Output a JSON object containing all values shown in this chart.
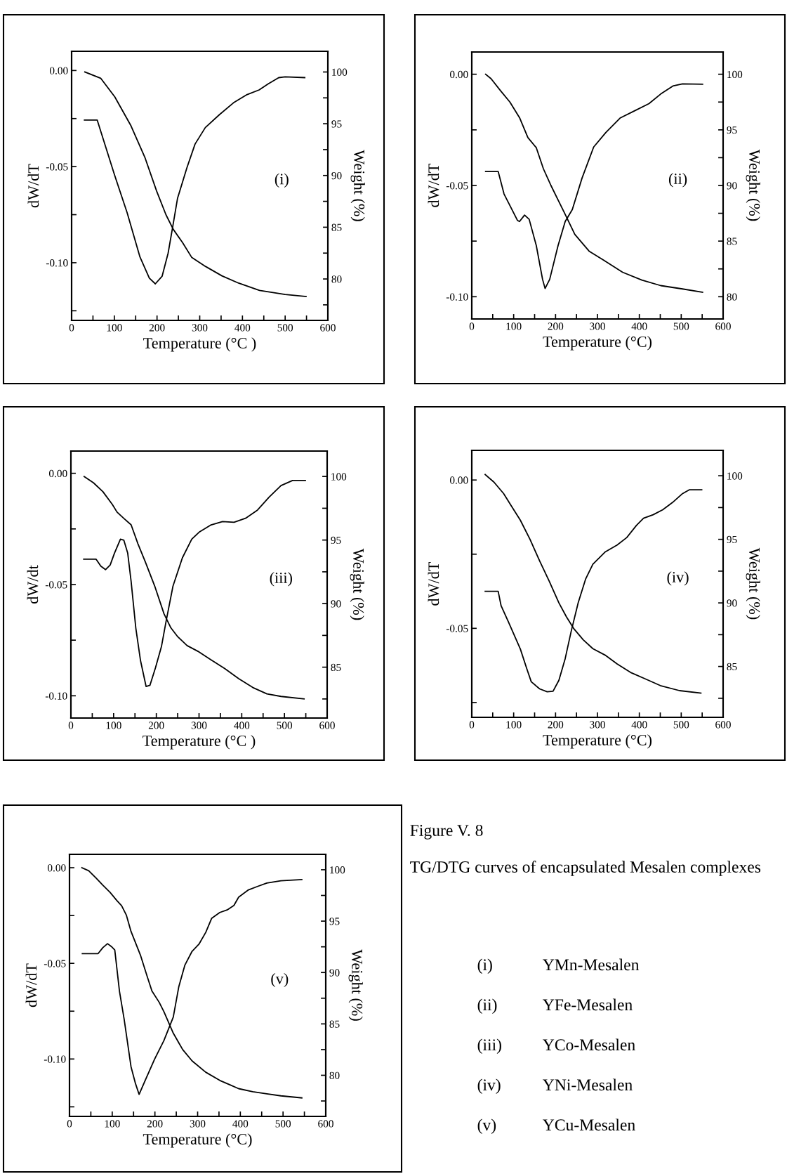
{
  "chart_data": [
    {
      "type": "line",
      "xlabel": "Temperature (°C )",
      "ylabel": "dW/dT",
      "y2label": "Weight (%)",
      "annotations": [
        "(i)"
      ],
      "xlim": [
        0,
        600
      ],
      "xticks": [
        0,
        {
          "value": 50,
          "label": null
        },
        100,
        {
          "value": 150,
          "label": null
        },
        200,
        {
          "value": 250,
          "label": null
        },
        300,
        {
          "value": 350,
          "label": null
        },
        400,
        {
          "value": 450,
          "label": null
        },
        500,
        {
          "value": 550,
          "label": null
        },
        600
      ],
      "ylim": [
        -0.13,
        0.01
      ],
      "yticks": [
        {
          "value": 0,
          "label": "0.00"
        },
        {
          "value": -0.025,
          "label": null
        },
        {
          "value": -0.05,
          "label": "-0.05"
        },
        {
          "value": -0.075,
          "label": null
        },
        {
          "value": -0.1,
          "label": "-0.10"
        },
        {
          "value": -0.125,
          "label": null
        }
      ],
      "y2lim": [
        76,
        102
      ],
      "y2ticks": [
        100,
        {
          "value": 97.5,
          "label": null
        },
        95,
        {
          "value": 92.5,
          "label": null
        },
        90,
        {
          "value": 87.5,
          "label": null
        },
        85,
        {
          "value": 82.5,
          "label": null
        },
        80,
        {
          "value": 77.5,
          "label": null
        }
      ],
      "series": [
        {
          "type": "line",
          "color": "#000000",
          "x": [
            30,
            60,
            100,
            130,
            160,
            182,
            196,
            212,
            226,
            237,
            248,
            270,
            289,
            313,
            346,
            379,
            411,
            439,
            460,
            485,
            500,
            546
          ],
          "values": [
            -0.0258,
            -0.0258,
            -0.054,
            -0.074,
            -0.097,
            -0.108,
            -0.111,
            -0.107,
            -0.095,
            -0.081,
            -0.0665,
            -0.0506,
            -0.0383,
            -0.0297,
            -0.023,
            -0.0168,
            -0.0125,
            -0.0101,
            -0.007,
            -0.0037,
            -0.0033,
            -0.0037
          ]
        },
        {
          "type": "line",
          "axis": "y2",
          "color": "#000000",
          "x": [
            31,
            68,
            101,
            139,
            172,
            199,
            221,
            238,
            260,
            281,
            314,
            352,
            391,
            440,
            500,
            549
          ],
          "values": [
            100,
            99.4,
            97.6,
            94.8,
            91.7,
            88.5,
            86.2,
            84.8,
            83.5,
            82.1,
            81.2,
            80.3,
            79.6,
            78.9,
            78.5,
            78.3
          ]
        }
      ]
    },
    {
      "type": "line",
      "xlabel": "Temperature (°C)",
      "ylabel": "dW/dT",
      "y2label": "Weight (%)",
      "annotations": [
        "(ii)"
      ],
      "xlim": [
        0,
        600
      ],
      "xticks": [
        0,
        {
          "value": 50,
          "label": null
        },
        100,
        {
          "value": 150,
          "label": null
        },
        200,
        {
          "value": 250,
          "label": null
        },
        300,
        {
          "value": 350,
          "label": null
        },
        400,
        {
          "value": 450,
          "label": null
        },
        500,
        {
          "value": 550,
          "label": null
        },
        600
      ],
      "ylim": [
        -0.11,
        0.01
      ],
      "yticks": [
        {
          "value": 0,
          "label": "0.00"
        },
        {
          "value": -0.025,
          "label": null
        },
        {
          "value": -0.05,
          "label": "-0.05"
        },
        {
          "value": -0.075,
          "label": null
        },
        {
          "value": -0.1,
          "label": "-0.10"
        }
      ],
      "y2lim": [
        78,
        102
      ],
      "y2ticks": [
        100,
        {
          "value": 97.5,
          "label": null
        },
        95,
        {
          "value": 92.5,
          "label": null
        },
        90,
        {
          "value": 87.5,
          "label": null
        },
        85,
        {
          "value": 82.5,
          "label": null
        },
        80
      ],
      "series": [
        {
          "type": "line",
          "color": "#000000",
          "x": [
            33,
            63,
            77,
            109,
            114,
            126,
            137,
            154,
            169,
            175,
            186,
            206,
            223,
            240,
            263,
            291,
            320,
            354,
            389,
            423,
            451,
            480,
            503,
            551
          ],
          "values": [
            -0.0437,
            -0.0437,
            -0.0538,
            -0.0657,
            -0.0662,
            -0.0633,
            -0.0652,
            -0.077,
            -0.0922,
            -0.0963,
            -0.0922,
            -0.077,
            -0.0662,
            -0.0608,
            -0.0468,
            -0.0327,
            -0.0262,
            -0.0197,
            -0.0164,
            -0.0132,
            -0.0089,
            -0.0053,
            -0.0043,
            -0.0045
          ]
        },
        {
          "type": "line",
          "axis": "y2",
          "color": "#000000",
          "x": [
            33,
            46,
            69,
            91,
            114,
            134,
            154,
            171,
            189,
            206,
            223,
            246,
            280,
            314,
            360,
            406,
            451,
            503,
            551
          ],
          "values": [
            100,
            99.6,
            98.5,
            97.5,
            96.1,
            94.3,
            93.4,
            91.5,
            90.0,
            88.7,
            87.4,
            85.6,
            84.1,
            83.3,
            82.2,
            81.5,
            81.0,
            80.7,
            80.4
          ]
        }
      ]
    },
    {
      "type": "line",
      "xlabel": "Temperature (°C )",
      "ylabel": "dW/dt",
      "y2label": "Weight (%)",
      "annotations": [
        "(iii)"
      ],
      "xlim": [
        0,
        600
      ],
      "xticks": [
        0,
        {
          "value": 50,
          "label": null
        },
        100,
        {
          "value": 150,
          "label": null
        },
        200,
        {
          "value": 250,
          "label": null
        },
        300,
        {
          "value": 350,
          "label": null
        },
        400,
        {
          "value": 450,
          "label": null
        },
        500,
        {
          "value": 550,
          "label": null
        },
        600
      ],
      "ylim": [
        -0.11,
        0.01
      ],
      "yticks": [
        {
          "value": 0,
          "label": "0.00"
        },
        {
          "value": -0.025,
          "label": null
        },
        {
          "value": -0.05,
          "label": "-0.05"
        },
        {
          "value": -0.075,
          "label": null
        },
        {
          "value": -0.1,
          "label": "-0.10"
        }
      ],
      "y2lim": [
        81,
        102
      ],
      "y2ticks": [
        100,
        {
          "value": 97.5,
          "label": null
        },
        95,
        {
          "value": 92.5,
          "label": null
        },
        90,
        {
          "value": 87.5,
          "label": null
        },
        85,
        {
          "value": 82.5,
          "label": null
        }
      ],
      "series": [
        {
          "type": "line",
          "color": "#000000",
          "x": [
            30,
            59,
            70,
            81,
            92,
            102,
            116,
            124,
            133,
            141,
            152,
            163,
            176,
            185,
            198,
            212,
            223,
            239,
            261,
            283,
            300,
            327,
            355,
            382,
            409,
            437,
            464,
            492,
            519,
            549
          ],
          "values": [
            -0.0386,
            -0.0386,
            -0.0417,
            -0.0433,
            -0.0412,
            -0.0359,
            -0.0296,
            -0.0301,
            -0.0359,
            -0.0486,
            -0.0696,
            -0.0842,
            -0.0958,
            -0.0953,
            -0.0874,
            -0.0779,
            -0.0664,
            -0.0507,
            -0.038,
            -0.0296,
            -0.0265,
            -0.0233,
            -0.0217,
            -0.022,
            -0.0202,
            -0.0165,
            -0.0107,
            -0.0055,
            -0.0032,
            -0.0032
          ]
        },
        {
          "type": "line",
          "axis": "y2",
          "color": "#000000",
          "x": [
            31,
            53,
            75,
            97,
            108,
            124,
            141,
            157,
            174,
            196,
            218,
            234,
            250,
            272,
            300,
            327,
            360,
            393,
            426,
            459,
            492,
            546
          ],
          "values": [
            100,
            99.5,
            98.8,
            97.8,
            97.2,
            96.7,
            96.2,
            94.7,
            93.3,
            91.4,
            89.2,
            88.1,
            87.4,
            86.7,
            86.2,
            85.6,
            84.9,
            84.1,
            83.4,
            82.9,
            82.7,
            82.5
          ]
        }
      ]
    },
    {
      "type": "line",
      "xlabel": "Temperature (°C)",
      "ylabel": "dW/dT",
      "y2label": "Weight (%)",
      "annotations": [
        "(iv)"
      ],
      "xlim": [
        0,
        600
      ],
      "xticks": [
        0,
        {
          "value": 50,
          "label": null
        },
        100,
        {
          "value": 150,
          "label": null
        },
        200,
        {
          "value": 250,
          "label": null
        },
        300,
        {
          "value": 350,
          "label": null
        },
        400,
        {
          "value": 450,
          "label": null
        },
        500,
        {
          "value": 550,
          "label": null
        },
        600
      ],
      "ylim": [
        -0.08,
        0.01
      ],
      "yticks": [
        {
          "value": 0,
          "label": "0.00"
        },
        {
          "value": -0.025,
          "label": null
        },
        {
          "value": -0.05,
          "label": "-0.05"
        },
        {
          "value": -0.075,
          "label": null
        }
      ],
      "y2lim": [
        81,
        102
      ],
      "y2ticks": [
        100,
        {
          "value": 97.5,
          "label": null
        },
        95,
        {
          "value": 92.5,
          "label": null
        },
        90,
        {
          "value": 87.5,
          "label": null
        },
        85,
        {
          "value": 82.5,
          "label": null
        }
      ],
      "series": [
        {
          "type": "line",
          "color": "#000000",
          "x": [
            32,
            63,
            70,
            88,
            116,
            131,
            142,
            162,
            180,
            194,
            208,
            223,
            237,
            254,
            272,
            289,
            318,
            347,
            370,
            393,
            410,
            433,
            456,
            479,
            502,
            519,
            549
          ],
          "values": [
            -0.0375,
            -0.0375,
            -0.0424,
            -0.048,
            -0.057,
            -0.0635,
            -0.068,
            -0.0704,
            -0.0714,
            -0.0712,
            -0.0675,
            -0.0602,
            -0.0512,
            -0.0414,
            -0.0333,
            -0.0284,
            -0.0243,
            -0.0219,
            -0.0194,
            -0.0153,
            -0.0129,
            -0.0117,
            -0.01,
            -0.0076,
            -0.0047,
            -0.0033,
            -0.0033
          ]
        },
        {
          "type": "line",
          "axis": "y2",
          "color": "#000000",
          "x": [
            32,
            53,
            76,
            93,
            116,
            139,
            162,
            185,
            208,
            226,
            243,
            266,
            289,
            318,
            347,
            381,
            416,
            450,
            496,
            547
          ],
          "values": [
            100.1,
            99.5,
            98.6,
            97.7,
            96.5,
            95.0,
            93.3,
            91.7,
            90.0,
            88.9,
            88.0,
            87.1,
            86.4,
            85.9,
            85.2,
            84.5,
            84.0,
            83.5,
            83.1,
            82.9
          ]
        }
      ]
    },
    {
      "type": "line",
      "xlabel": "Temperature (°C)",
      "ylabel": "dW/dT",
      "y2label": "Weight (%)",
      "annotations": [
        "(v)"
      ],
      "xlim": [
        0,
        600
      ],
      "xticks": [
        0,
        {
          "value": 50,
          "label": null
        },
        100,
        {
          "value": 150,
          "label": null
        },
        200,
        {
          "value": 250,
          "label": null
        },
        300,
        {
          "value": 350,
          "label": null
        },
        400,
        {
          "value": 450,
          "label": null
        },
        500,
        {
          "value": 550,
          "label": null
        },
        600
      ],
      "ylim": [
        -0.13,
        0.007
      ],
      "yticks": [
        {
          "value": 0,
          "label": "0.00"
        },
        {
          "value": -0.025,
          "label": null
        },
        {
          "value": -0.05,
          "label": "-0.05"
        },
        {
          "value": -0.075,
          "label": null
        },
        {
          "value": -0.1,
          "label": "-0.10"
        },
        {
          "value": -0.125,
          "label": null
        }
      ],
      "y2lim": [
        76,
        101.5
      ],
      "y2ticks": [
        100,
        {
          "value": 97.5,
          "label": null
        },
        95,
        {
          "value": 92.5,
          "label": null
        },
        90,
        {
          "value": 87.5,
          "label": null
        },
        85,
        {
          "value": 82.5,
          "label": null
        },
        80,
        {
          "value": 77.5,
          "label": null
        }
      ],
      "series": [
        {
          "type": "line",
          "color": "#000000",
          "x": [
            30,
            67,
            78,
            89,
            98,
            106,
            117,
            128,
            144,
            154,
            163,
            177,
            199,
            221,
            243,
            256,
            270,
            287,
            303,
            319,
            333,
            352,
            369,
            385,
            396,
            418,
            440,
            462,
            495,
            544
          ],
          "values": [
            -0.0449,
            -0.0449,
            -0.0418,
            -0.0397,
            -0.0412,
            -0.043,
            -0.0646,
            -0.0793,
            -0.104,
            -0.1125,
            -0.1185,
            -0.1113,
            -0.1002,
            -0.0904,
            -0.0781,
            -0.0621,
            -0.051,
            -0.0437,
            -0.04,
            -0.0338,
            -0.0264,
            -0.0234,
            -0.0221,
            -0.0197,
            -0.0154,
            -0.0117,
            -0.0098,
            -0.008,
            -0.0068,
            -0.0062
          ]
        },
        {
          "type": "line",
          "axis": "y2",
          "color": "#000000",
          "x": [
            29,
            45,
            62,
            78,
            95,
            111,
            122,
            133,
            144,
            166,
            182,
            193,
            210,
            221,
            243,
            265,
            287,
            319,
            352,
            374,
            396,
            429,
            462,
            495,
            544
          ],
          "values": [
            100.2,
            99.9,
            99.2,
            98.5,
            97.8,
            97.0,
            96.5,
            95.6,
            94.0,
            91.7,
            89.6,
            88.2,
            87.1,
            86.2,
            84.1,
            82.5,
            81.4,
            80.3,
            79.5,
            79.1,
            78.7,
            78.4,
            78.2,
            78.0,
            77.8
          ]
        }
      ]
    },
    {
      "type": "other",
      "title": "Figure V. 8",
      "subtitle": "TG/DTG curves of encapsulated Mesalen complexes",
      "annotations": [
        "(i)",
        "YMn-Mesalen",
        "(ii)",
        "YFe-Mesalen",
        "(iii)",
        "YCo-Mesalen",
        "(iv)",
        "YNi-Mesalen",
        "(v)",
        "YCu-Mesalen"
      ]
    }
  ]
}
